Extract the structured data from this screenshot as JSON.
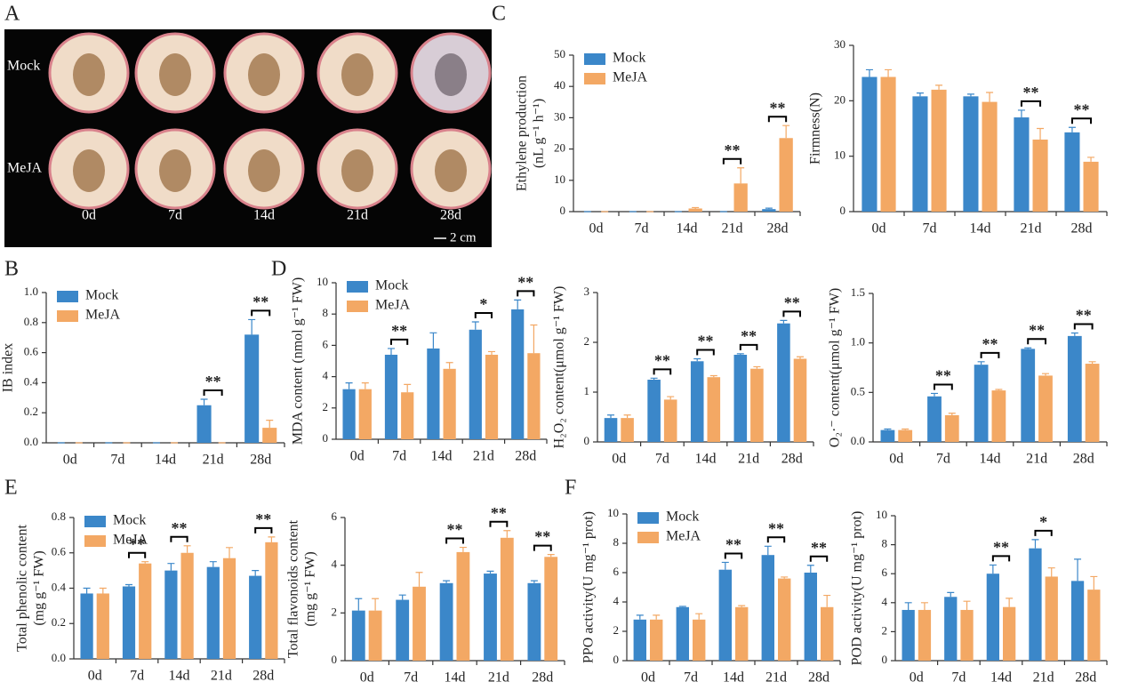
{
  "panel_labels": [
    "A",
    "B",
    "C",
    "D",
    "E",
    "F"
  ],
  "photo": {
    "rows": [
      "Mock",
      "MeJA"
    ],
    "columns": [
      "0d",
      "7d",
      "14d",
      "21d",
      "28d"
    ],
    "scale_bar": "2 cm"
  },
  "chart_data": [
    {
      "type": "bar",
      "ylabel": [
        "Ethylene production",
        "(nL g⁻¹ h⁻¹)"
      ],
      "categories": [
        "0d",
        "7d",
        "14d",
        "21d",
        "28d"
      ],
      "ylim": [
        0,
        50
      ],
      "yticks": [
        0,
        10,
        20,
        30,
        40,
        50
      ],
      "legend": true,
      "series": [
        {
          "name": "Mock",
          "color": "#3b87c9",
          "values": [
            0,
            0,
            0,
            0,
            0.8
          ],
          "errors": [
            0,
            0,
            0,
            0,
            0.3
          ]
        },
        {
          "name": "MeJA",
          "color": "#f3a864",
          "values": [
            0,
            0,
            1,
            9,
            23.5
          ],
          "errors": [
            0,
            0,
            0.3,
            5,
            4
          ]
        }
      ],
      "significance": [
        null,
        null,
        null,
        "**",
        "**"
      ]
    },
    {
      "type": "bar",
      "ylabel": [
        "Firmness(N)"
      ],
      "categories": [
        "0d",
        "7d",
        "14d",
        "21d",
        "28d"
      ],
      "ylim": [
        0,
        30
      ],
      "yticks": [
        0,
        10,
        20,
        30
      ],
      "legend": false,
      "series": [
        {
          "color": "#3b87c9",
          "values": [
            24.3,
            20.8,
            20.8,
            17,
            14.3
          ],
          "errors": [
            1.3,
            0.6,
            0.4,
            1.3,
            0.9
          ]
        },
        {
          "color": "#f3a864",
          "values": [
            24.3,
            22,
            19.8,
            13,
            9
          ],
          "errors": [
            1.3,
            0.8,
            1.7,
            2,
            0.8
          ]
        }
      ],
      "significance": [
        null,
        null,
        null,
        "**",
        "**"
      ]
    },
    {
      "type": "bar",
      "ylabel": [
        "IB index"
      ],
      "categories": [
        "0d",
        "7d",
        "14d",
        "21d",
        "28d"
      ],
      "ylim": [
        0,
        1
      ],
      "yticks": [
        {
          "value": 0,
          "label": "0.0"
        },
        0.2,
        0.4,
        0.6,
        0.8,
        {
          "value": 1,
          "label": "1.0"
        }
      ],
      "legend": true,
      "series": [
        {
          "name": "Mock",
          "color": "#3b87c9",
          "values": [
            0,
            0,
            0,
            0.25,
            0.72
          ],
          "errors": [
            0,
            0,
            0,
            0.04,
            0.1
          ]
        },
        {
          "name": "MeJA",
          "color": "#f3a864",
          "values": [
            0,
            0,
            0,
            0,
            0.1
          ],
          "errors": [
            0,
            0,
            0,
            0,
            0.05
          ]
        }
      ],
      "significance": [
        null,
        null,
        null,
        "**",
        "**"
      ]
    },
    {
      "type": "bar",
      "ylabel": [
        "MDA content (nmol g⁻¹ FW)"
      ],
      "categories": [
        "0d",
        "7d",
        "14d",
        "21d",
        "28d"
      ],
      "ylim": [
        0,
        10
      ],
      "yticks": [
        0,
        2,
        4,
        6,
        8,
        10
      ],
      "legend": true,
      "series": [
        {
          "name": "Mock",
          "color": "#3b87c9",
          "values": [
            3.2,
            5.4,
            5.8,
            7,
            8.3
          ],
          "errors": [
            0.4,
            0.4,
            1,
            0.5,
            0.6
          ]
        },
        {
          "name": "MeJA",
          "color": "#f3a864",
          "values": [
            3.2,
            3,
            4.5,
            5.4,
            5.5
          ],
          "errors": [
            0.4,
            0.5,
            0.4,
            0.2,
            1.8
          ]
        }
      ],
      "significance": [
        null,
        "**",
        null,
        "*",
        "**"
      ]
    },
    {
      "type": "bar",
      "ylabel": [
        "H₂O₂ content(μmol g⁻¹ FW)"
      ],
      "categories": [
        "0d",
        "7d",
        "14d",
        "21d",
        "28d"
      ],
      "ylim": [
        0,
        3
      ],
      "yticks": [
        0,
        1,
        2,
        3
      ],
      "legend": false,
      "series": [
        {
          "color": "#3b87c9",
          "values": [
            0.48,
            1.25,
            1.62,
            1.75,
            2.38
          ],
          "errors": [
            0.06,
            0.03,
            0.05,
            0.02,
            0.06
          ]
        },
        {
          "color": "#f3a864",
          "values": [
            0.48,
            0.85,
            1.3,
            1.47,
            1.67
          ],
          "errors": [
            0.06,
            0.06,
            0.03,
            0.04,
            0.04
          ]
        }
      ],
      "significance": [
        null,
        "**",
        "**",
        "**",
        "**"
      ]
    },
    {
      "type": "bar",
      "ylabel": [
        "O₂·⁻ content(μmol g⁻¹ FW)"
      ],
      "categories": [
        "0d",
        "7d",
        "14d",
        "21d",
        "28d"
      ],
      "ylim": [
        0,
        1.5
      ],
      "yticks": [
        {
          "value": 0,
          "label": "0.0"
        },
        0.5,
        {
          "value": 1,
          "label": "1.0"
        },
        1.5
      ],
      "legend": false,
      "series": [
        {
          "color": "#3b87c9",
          "values": [
            0.12,
            0.46,
            0.78,
            0.94,
            1.07
          ],
          "errors": [
            0.01,
            0.03,
            0.03,
            0.01,
            0.03
          ]
        },
        {
          "color": "#f3a864",
          "values": [
            0.12,
            0.27,
            0.52,
            0.67,
            0.79
          ],
          "errors": [
            0.01,
            0.02,
            0.01,
            0.02,
            0.02
          ]
        }
      ],
      "significance": [
        null,
        "**",
        "**",
        "**",
        "**"
      ]
    },
    {
      "type": "bar",
      "ylabel": [
        "Total phenolic content",
        "(mg g⁻¹ FW)"
      ],
      "categories": [
        "0d",
        "7d",
        "14d",
        "21d",
        "28d"
      ],
      "ylim": [
        0,
        0.8
      ],
      "yticks": [
        {
          "value": 0,
          "label": "0.0"
        },
        0.2,
        0.4,
        0.6,
        0.8
      ],
      "legend": true,
      "series": [
        {
          "name": "Mock",
          "color": "#3b87c9",
          "values": [
            0.37,
            0.41,
            0.5,
            0.52,
            0.47
          ],
          "errors": [
            0.03,
            0.01,
            0.04,
            0.03,
            0.03
          ]
        },
        {
          "name": "MeJA",
          "color": "#f3a864",
          "values": [
            0.37,
            0.54,
            0.6,
            0.57,
            0.66
          ],
          "errors": [
            0.03,
            0.01,
            0.04,
            0.06,
            0.03
          ]
        }
      ],
      "significance": [
        null,
        "**",
        "**",
        null,
        "**"
      ]
    },
    {
      "type": "bar",
      "ylabel": [
        "Total flavonoids content",
        "(mg g⁻¹ FW)"
      ],
      "categories": [
        "0d",
        "7d",
        "14d",
        "21d",
        "28d"
      ],
      "ylim": [
        0,
        6
      ],
      "yticks": [
        0,
        2,
        4,
        6
      ],
      "legend": false,
      "series": [
        {
          "color": "#3b87c9",
          "values": [
            2.1,
            2.55,
            3.25,
            3.65,
            3.25
          ],
          "errors": [
            0.5,
            0.2,
            0.1,
            0.1,
            0.1
          ]
        },
        {
          "color": "#f3a864",
          "values": [
            2.1,
            3.1,
            4.55,
            5.15,
            4.35
          ],
          "errors": [
            0.5,
            0.6,
            0.2,
            0.3,
            0.1
          ]
        }
      ],
      "significance": [
        null,
        null,
        "**",
        "**",
        "**"
      ]
    },
    {
      "type": "bar",
      "ylabel": [
        "PPO activity(U mg⁻¹ prot)"
      ],
      "categories": [
        "0d",
        "7d",
        "14d",
        "21d",
        "28d"
      ],
      "ylim": [
        0,
        10
      ],
      "yticks": [
        0,
        2,
        4,
        6,
        8,
        10
      ],
      "legend": true,
      "series": [
        {
          "name": "Mock",
          "color": "#3b87c9",
          "values": [
            2.8,
            3.65,
            6.2,
            7.2,
            6
          ],
          "errors": [
            0.3,
            0.05,
            0.5,
            0.6,
            0.5
          ]
        },
        {
          "name": "MeJA",
          "color": "#f3a864",
          "values": [
            2.8,
            2.8,
            3.65,
            5.6,
            3.65
          ],
          "errors": [
            0.3,
            0.4,
            0.1,
            0.1,
            0.8
          ]
        }
      ],
      "significance": [
        null,
        null,
        "**",
        "**",
        "**"
      ]
    },
    {
      "type": "bar",
      "ylabel": [
        "POD activity(U mg⁻¹ prot)"
      ],
      "categories": [
        "0d",
        "7d",
        "14d",
        "21d",
        "28d"
      ],
      "ylim": [
        0,
        10
      ],
      "yticks": [
        0,
        2,
        4,
        6,
        8,
        10
      ],
      "legend": false,
      "series": [
        {
          "color": "#3b87c9",
          "values": [
            3.5,
            4.4,
            6,
            7.75,
            5.5
          ],
          "errors": [
            0.5,
            0.3,
            0.6,
            0.6,
            1.5
          ]
        },
        {
          "color": "#f3a864",
          "values": [
            3.5,
            3.5,
            3.7,
            5.8,
            4.9
          ],
          "errors": [
            0.5,
            0.6,
            0.6,
            0.6,
            0.9
          ]
        }
      ],
      "significance": [
        null,
        null,
        "**",
        "*",
        null
      ]
    }
  ]
}
